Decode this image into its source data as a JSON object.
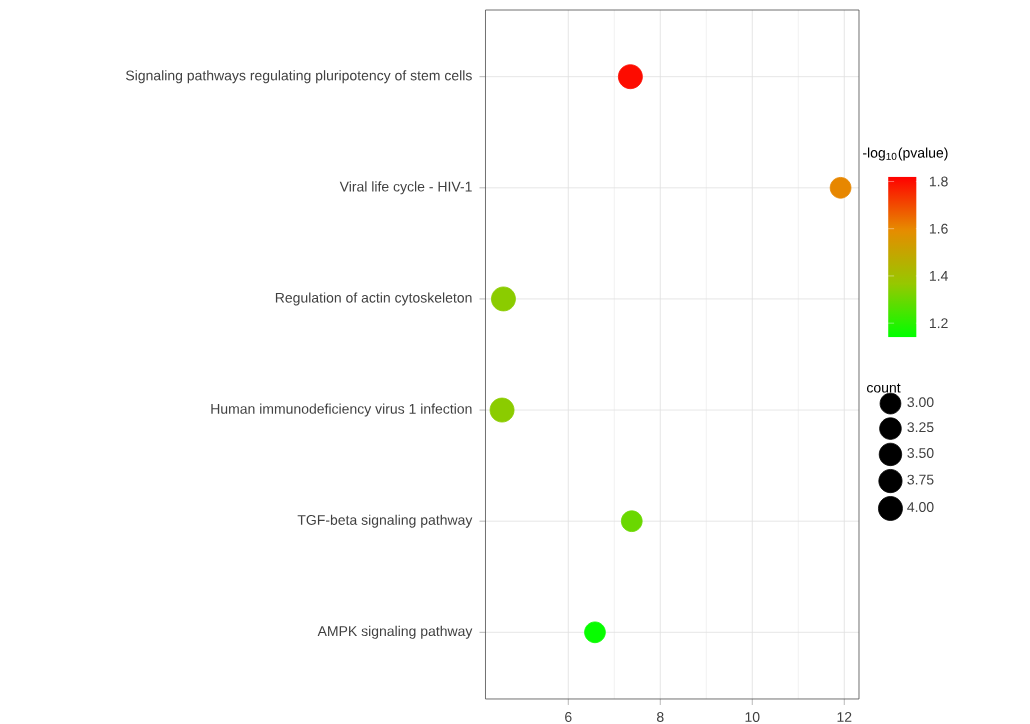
{
  "chart_data": {
    "type": "bubble",
    "orientation": "horizontal",
    "categories": [
      "Signaling pathways regulating pluripotency of stem cells",
      "Viral life cycle - HIV-1",
      "Regulation of actin cytoskeleton",
      "Human immunodeficiency virus 1 infection",
      "TGF-beta signaling pathway",
      "AMPK signaling pathway"
    ],
    "values": [
      7.35,
      11.92,
      4.59,
      4.56,
      7.38,
      6.58
    ],
    "sizes": [
      4,
      3,
      4,
      4,
      3,
      3
    ],
    "cvalues": [
      1.8,
      1.6,
      1.35,
      1.35,
      1.3,
      1.15
    ],
    "size_legend": [
      {
        "value": 3,
        "label": "3.00"
      },
      {
        "value": 3.25,
        "label": "3.25"
      },
      {
        "value": 3.5,
        "label": "3.50"
      },
      {
        "value": 3.75,
        "label": "3.75"
      },
      {
        "value": 4,
        "label": "4.00"
      }
    ],
    "legend_title": "count",
    "clabel": "-log$_{10}$(pvalue)",
    "clim": [
      1.14,
      1.82
    ],
    "cticks": [
      1.2,
      1.4,
      1.6,
      1.8
    ],
    "xlim": [
      4.2,
      12.32
    ],
    "xticks": [
      6,
      8,
      10,
      12
    ],
    "grid": true,
    "marker": "circle"
  }
}
